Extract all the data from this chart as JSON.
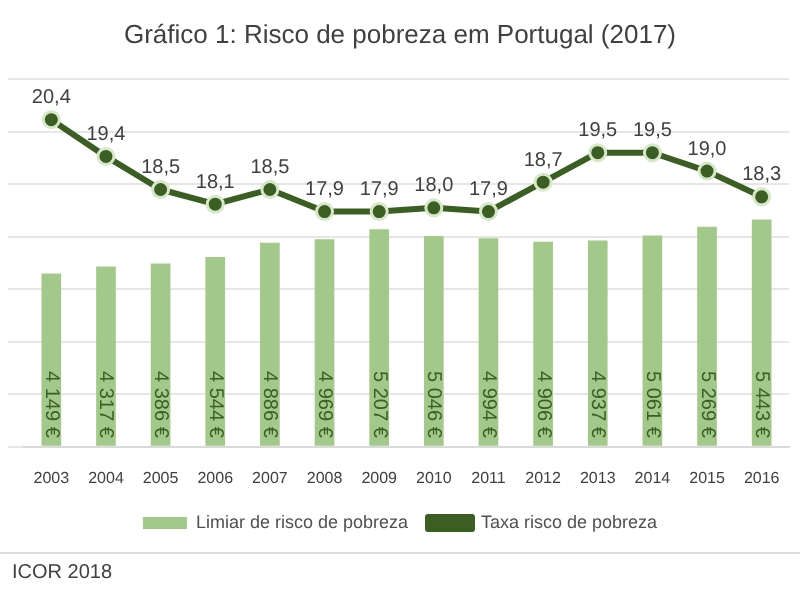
{
  "chart_data": {
    "type": "bar",
    "title": "Gráfico 1: Risco de pobreza em Portugal (2017)",
    "categories": [
      "2003",
      "2004",
      "2005",
      "2006",
      "2007",
      "2008",
      "2009",
      "2010",
      "2011",
      "2012",
      "2013",
      "2014",
      "2015",
      "2016"
    ],
    "series": [
      {
        "name": "Limiar de risco de pobreza",
        "color": "#a3c98a",
        "values": [
          4149,
          4317,
          4386,
          4544,
          4886,
          4969,
          5207,
          5046,
          4994,
          4906,
          4937,
          5061,
          5269,
          5443
        ],
        "value_labels": [
          "4 149 €",
          "4 317 €",
          "4 386 €",
          "4 544 €",
          "4 886 €",
          "4 969 €",
          "5 207 €",
          "5 046 €",
          "4 994 €",
          "4 906 €",
          "4 937 €",
          "5 061 €",
          "5 269 €",
          "5 443 €"
        ]
      },
      {
        "name": "Taxa risco de pobreza",
        "type": "line",
        "axis": "y2",
        "color": "#3b5e22",
        "values": [
          20.4,
          19.4,
          18.5,
          18.1,
          18.5,
          17.9,
          17.9,
          18.0,
          17.9,
          18.7,
          19.5,
          19.5,
          19.0,
          18.3
        ],
        "value_labels": [
          "20,4",
          "19,4",
          "18,5",
          "18,1",
          "18,5",
          "17,9",
          "17,9",
          "18,0",
          "17,9",
          "18,7",
          "19,5",
          "19,5",
          "19,0",
          "18,3"
        ]
      }
    ],
    "ylim": [
      0,
      8800
    ],
    "y2lim": [
      11.5,
      21.5
    ],
    "grid": "y",
    "legend": "bottom",
    "marker": "circle",
    "line_style": "solid",
    "annotations": [
      "ICOR 2018"
    ]
  }
}
